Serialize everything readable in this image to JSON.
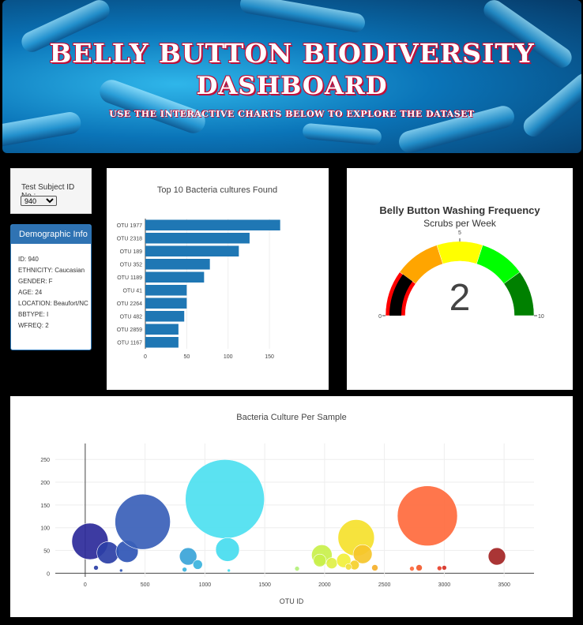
{
  "header": {
    "title_line1": "BELLY BUTTON BIODIVERSITY",
    "title_line2": "DASHBOARD",
    "subtitle": "USE THE INTERACTIVE CHARTS BELOW TO EXPLORE THE DATASET"
  },
  "selector": {
    "label": "Test Subject ID No.:",
    "selected": "940"
  },
  "demographic": {
    "heading": "Demographic Info",
    "items": [
      "ID: 940",
      "ETHNICITY: Caucasian",
      "GENDER: F",
      "AGE: 24",
      "LOCATION: Beaufort/NC",
      "BBTYPE: I",
      "WFREQ: 2"
    ]
  },
  "colors": {
    "bar": "#1f77b4",
    "panel_heading": "#2f73b3"
  },
  "chart_data": [
    {
      "type": "bar",
      "orientation": "horizontal",
      "title": "Top 10 Bacteria cultures Found",
      "categories": [
        "OTU 1977",
        "OTU 2318",
        "OTU 189",
        "OTU 352",
        "OTU 1189",
        "OTU 41",
        "OTU 2264",
        "OTU 482",
        "OTU 2859",
        "OTU 1167"
      ],
      "values": [
        163,
        126,
        113,
        78,
        71,
        50,
        50,
        47,
        40,
        40
      ],
      "xticks": [
        "0",
        "50",
        "100",
        "150"
      ],
      "xlim": [
        0,
        170
      ]
    },
    {
      "type": "gauge",
      "title": "Belly Button Washing Frequency",
      "subtitle": "Scrubs per Week",
      "value": 2,
      "range": [
        0,
        10
      ],
      "tick_labels": [
        "0",
        "5",
        "10"
      ],
      "step_colors": [
        "#ff0000",
        "#ffa500",
        "#ffff00",
        "#00ff00",
        "#008000"
      ]
    },
    {
      "type": "scatter",
      "title": "Bacteria Culture Per Sample",
      "xlabel": "OTU ID",
      "xticks": [
        "0",
        "500",
        "1000",
        "1500",
        "2000",
        "2500",
        "3000",
        "3500"
      ],
      "yticks": [
        "0",
        "50",
        "100",
        "150",
        "200",
        "250"
      ],
      "xlim": [
        -250,
        3750
      ],
      "ylim": [
        -8,
        285
      ],
      "points": [
        {
          "x": 40,
          "y": 70,
          "r": 23,
          "c": "#2c2a9a"
        },
        {
          "x": 190,
          "y": 45,
          "r": 14,
          "c": "#2b3fa6"
        },
        {
          "x": 350,
          "y": 48,
          "r": 14,
          "c": "#2f55b5"
        },
        {
          "x": 480,
          "y": 113,
          "r": 35,
          "c": "#3a5fb8"
        },
        {
          "x": 90,
          "y": 12,
          "r": 3,
          "c": "#2b3fa6"
        },
        {
          "x": 300,
          "y": 6,
          "r": 2,
          "c": "#2f55b5"
        },
        {
          "x": 860,
          "y": 37,
          "r": 11,
          "c": "#3aa4d8"
        },
        {
          "x": 940,
          "y": 19,
          "r": 6,
          "c": "#3ab3dd"
        },
        {
          "x": 830,
          "y": 8,
          "r": 3,
          "c": "#3ab3dd"
        },
        {
          "x": 1167,
          "y": 163,
          "r": 50,
          "c": "#4de0f0"
        },
        {
          "x": 1189,
          "y": 52,
          "r": 15,
          "c": "#46dcef"
        },
        {
          "x": 1200,
          "y": 6,
          "r": 2,
          "c": "#46dcef"
        },
        {
          "x": 1770,
          "y": 10,
          "r": 3,
          "c": "#b3f07a"
        },
        {
          "x": 1977,
          "y": 40,
          "r": 13,
          "c": "#c9f04b"
        },
        {
          "x": 1960,
          "y": 28,
          "r": 8,
          "c": "#c9f04b"
        },
        {
          "x": 2060,
          "y": 22,
          "r": 7,
          "c": "#dff046"
        },
        {
          "x": 2160,
          "y": 28,
          "r": 9,
          "c": "#f2f03a"
        },
        {
          "x": 2264,
          "y": 78,
          "r": 23,
          "c": "#f5e12c"
        },
        {
          "x": 2318,
          "y": 42,
          "r": 12,
          "c": "#f5c52a"
        },
        {
          "x": 2250,
          "y": 18,
          "r": 6,
          "c": "#f5d02b"
        },
        {
          "x": 2200,
          "y": 14,
          "r": 4,
          "c": "#f2e03a"
        },
        {
          "x": 2420,
          "y": 12,
          "r": 4,
          "c": "#f5b02a"
        },
        {
          "x": 2859,
          "y": 126,
          "r": 38,
          "c": "#ff6a3d"
        },
        {
          "x": 2730,
          "y": 10,
          "r": 3,
          "c": "#ff6a3d"
        },
        {
          "x": 2790,
          "y": 12,
          "r": 4,
          "c": "#f25a2d"
        },
        {
          "x": 2960,
          "y": 11,
          "r": 3,
          "c": "#e8402a"
        },
        {
          "x": 3000,
          "y": 12,
          "r": 3,
          "c": "#d63025"
        },
        {
          "x": 3440,
          "y": 37,
          "r": 11,
          "c": "#a32424"
        }
      ]
    }
  ]
}
